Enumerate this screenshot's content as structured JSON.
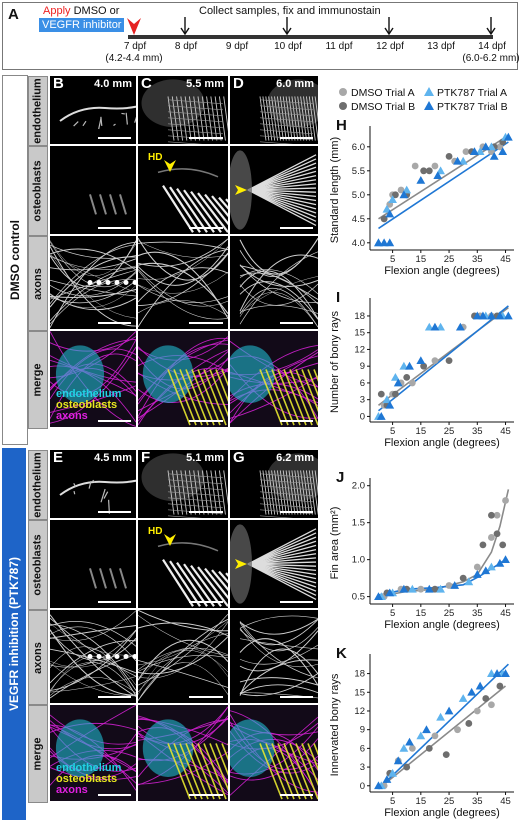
{
  "panel_a": {
    "label": "A",
    "apply_word": "Apply",
    "apply_rest": " DMSO or",
    "inhibitor": "VEGFR inhibitor",
    "collect": "Collect samples, fix and immunostain",
    "days": [
      {
        "label": "7 dpf",
        "sub": "(4.2-4.4 mm)",
        "marker": "red"
      },
      {
        "label": "8 dpf",
        "sub": "",
        "marker": "black"
      },
      {
        "label": "9 dpf",
        "sub": "",
        "marker": ""
      },
      {
        "label": "10 dpf",
        "sub": "",
        "marker": "black"
      },
      {
        "label": "11 dpf",
        "sub": "",
        "marker": ""
      },
      {
        "label": "12 dpf",
        "sub": "",
        "marker": "black"
      },
      {
        "label": "13 dpf",
        "sub": "",
        "marker": ""
      },
      {
        "label": "14 dpf",
        "sub": "(6.0-6.2 mm)",
        "marker": "black"
      }
    ]
  },
  "groups": {
    "control": "DMSO control",
    "inhibition": "VEGFR inhibition (PTK787)"
  },
  "rows": [
    "endothelium",
    "osteoblasts",
    "axons",
    "merge"
  ],
  "columns_top": [
    {
      "label": "B",
      "size": "4.0 mm"
    },
    {
      "label": "C",
      "size": "5.5 mm"
    },
    {
      "label": "D",
      "size": "6.0 mm"
    }
  ],
  "columns_bottom": [
    {
      "label": "E",
      "size": "4.5 mm"
    },
    {
      "label": "F",
      "size": "5.1 mm"
    },
    {
      "label": "G",
      "size": "6.2 mm"
    }
  ],
  "hd_label": "HD",
  "merge_legend": [
    {
      "text": "endothelium",
      "color": "#22d3e6"
    },
    {
      "text": "osteoblasts",
      "color": "#e8e820"
    },
    {
      "text": "axons",
      "color": "#e020e0"
    }
  ],
  "colors": {
    "dmso_a": "#a8a8a8",
    "dmso_b": "#6e6e6e",
    "ptk_a": "#5fb4ee",
    "ptk_b": "#1f77d4",
    "group_blue": "#1e64c8"
  },
  "legend": [
    {
      "name": "DMSO Trial A",
      "shape": "circle",
      "color": "#a8a8a8"
    },
    {
      "name": "DMSO Trial B",
      "shape": "circle",
      "color": "#6e6e6e"
    },
    {
      "name": "PTK787 Trial A",
      "shape": "triangle",
      "color": "#5fb4ee"
    },
    {
      "name": "PTK787 Trial B",
      "shape": "triangle",
      "color": "#1f77d4"
    }
  ],
  "chart_data": [
    {
      "panel": "H",
      "type": "scatter",
      "xlabel": "Flexion angle (degrees)",
      "ylabel": "Standard length (mm)",
      "xlim": [
        -3,
        48
      ],
      "ylim": [
        3.85,
        6.35
      ],
      "xticks": [
        5,
        15,
        25,
        35,
        45
      ],
      "yticks": [
        4.0,
        4.5,
        5.0,
        5.5,
        6.0
      ],
      "series": [
        {
          "name": "DMSO Trial A",
          "points": [
            [
              2,
              4.5
            ],
            [
              4,
              4.8
            ],
            [
              5,
              5.0
            ],
            [
              8,
              5.1
            ],
            [
              13,
              5.6
            ],
            [
              20,
              5.6
            ],
            [
              27,
              5.7
            ],
            [
              31,
              5.9
            ],
            [
              37,
              6.0
            ],
            [
              40,
              5.9
            ],
            [
              43,
              6.0
            ]
          ]
        },
        {
          "name": "DMSO Trial B",
          "points": [
            [
              2,
              4.5
            ],
            [
              6,
              5.0
            ],
            [
              10,
              5.0
            ],
            [
              16,
              5.5
            ],
            [
              18,
              5.5
            ],
            [
              25,
              5.8
            ],
            [
              33,
              5.9
            ],
            [
              41,
              6.0
            ],
            [
              44,
              6.1
            ]
          ]
        },
        {
          "name": "PTK787 Trial A",
          "points": [
            [
              0,
              4.0
            ],
            [
              3,
              4.7
            ],
            [
              5,
              4.9
            ],
            [
              10,
              5.1
            ],
            [
              22,
              5.5
            ],
            [
              30,
              5.7
            ],
            [
              36,
              5.9
            ],
            [
              40,
              6.0
            ],
            [
              45,
              6.2
            ]
          ]
        },
        {
          "name": "PTK787 Trial B",
          "points": [
            [
              0,
              4.0
            ],
            [
              2,
              4.0
            ],
            [
              4,
              4.0
            ],
            [
              4,
              4.6
            ],
            [
              9,
              5.0
            ],
            [
              15,
              5.3
            ],
            [
              21,
              5.4
            ],
            [
              28,
              5.7
            ],
            [
              34,
              5.9
            ],
            [
              38,
              6.0
            ],
            [
              41,
              5.8
            ],
            [
              44,
              5.9
            ],
            [
              46,
              6.2
            ]
          ]
        }
      ],
      "fits": [
        {
          "name": "DMSO",
          "color": "#8a8a8a",
          "x": [
            0,
            45
          ],
          "y": [
            4.5,
            6.2
          ]
        },
        {
          "name": "PTK787",
          "color": "#1f77d4",
          "x": [
            0,
            46
          ],
          "y": [
            4.3,
            6.1
          ]
        }
      ]
    },
    {
      "panel": "I",
      "type": "scatter",
      "xlabel": "Flexion angle (degrees)",
      "ylabel": "Number of bony rays",
      "xlim": [
        -3,
        48
      ],
      "ylim": [
        -1,
        20.5
      ],
      "xticks": [
        5,
        15,
        25,
        35,
        45
      ],
      "yticks": [
        0,
        3,
        6,
        9,
        12,
        15,
        18
      ],
      "series": [
        {
          "name": "DMSO Trial A",
          "points": [
            [
              2,
              2
            ],
            [
              5,
              4
            ],
            [
              8,
              6
            ],
            [
              12,
              6
            ],
            [
              20,
              10
            ],
            [
              30,
              16
            ],
            [
              36,
              18
            ],
            [
              40,
              18
            ]
          ]
        },
        {
          "name": "DMSO Trial B",
          "points": [
            [
              1,
              4
            ],
            [
              3,
              2
            ],
            [
              6,
              4
            ],
            [
              10,
              7
            ],
            [
              16,
              9
            ],
            [
              25,
              10
            ],
            [
              34,
              18
            ],
            [
              42,
              18
            ]
          ]
        },
        {
          "name": "PTK787 Trial A",
          "points": [
            [
              0,
              0
            ],
            [
              3,
              3
            ],
            [
              6,
              7
            ],
            [
              9,
              9
            ],
            [
              18,
              16
            ],
            [
              22,
              16
            ],
            [
              38,
              18
            ],
            [
              44,
              18
            ]
          ]
        },
        {
          "name": "PTK787 Trial B",
          "points": [
            [
              1,
              0
            ],
            [
              4,
              2
            ],
            [
              7,
              6
            ],
            [
              11,
              9
            ],
            [
              15,
              10
            ],
            [
              20,
              16
            ],
            [
              29,
              16
            ],
            [
              35,
              18
            ],
            [
              37,
              18
            ],
            [
              40,
              18
            ],
            [
              43,
              18
            ],
            [
              46,
              18
            ]
          ]
        }
      ],
      "fits": [
        {
          "name": "DMSO",
          "color": "#8a8a8a",
          "x": [
            0,
            46
          ],
          "y": [
            2,
            19.5
          ]
        },
        {
          "name": "PTK787",
          "color": "#1f77d4",
          "x": [
            0,
            46
          ],
          "y": [
            1,
            19.8
          ]
        }
      ]
    },
    {
      "panel": "J",
      "type": "scatter",
      "xlabel": "Flexion angle (degrees)",
      "ylabel": "Fin area (mm²)",
      "xlim": [
        -3,
        48
      ],
      "ylim": [
        0.4,
        2.05
      ],
      "xticks": [
        5,
        15,
        25,
        35,
        45
      ],
      "yticks": [
        0.5,
        1.0,
        1.5,
        2.0
      ],
      "series": [
        {
          "name": "DMSO Trial A",
          "points": [
            [
              2,
              0.5
            ],
            [
              8,
              0.6
            ],
            [
              15,
              0.6
            ],
            [
              25,
              0.65
            ],
            [
              35,
              0.9
            ],
            [
              40,
              1.3
            ],
            [
              42,
              1.6
            ],
            [
              45,
              1.8
            ]
          ]
        },
        {
          "name": "DMSO Trial B",
          "points": [
            [
              3,
              0.55
            ],
            [
              10,
              0.6
            ],
            [
              20,
              0.6
            ],
            [
              30,
              0.75
            ],
            [
              37,
              1.2
            ],
            [
              40,
              1.6
            ],
            [
              42,
              1.35
            ],
            [
              44,
              1.2
            ]
          ]
        },
        {
          "name": "PTK787 Trial A",
          "points": [
            [
              1,
              0.5
            ],
            [
              5,
              0.55
            ],
            [
              12,
              0.6
            ],
            [
              22,
              0.6
            ],
            [
              32,
              0.7
            ],
            [
              40,
              0.9
            ]
          ]
        },
        {
          "name": "PTK787 Trial B",
          "points": [
            [
              0,
              0.5
            ],
            [
              4,
              0.55
            ],
            [
              9,
              0.6
            ],
            [
              18,
              0.6
            ],
            [
              27,
              0.65
            ],
            [
              35,
              0.8
            ],
            [
              38,
              0.85
            ],
            [
              43,
              0.95
            ],
            [
              45,
              1.0
            ]
          ]
        }
      ],
      "fits": [
        {
          "name": "DMSO",
          "color": "#8a8a8a",
          "x": [
            0,
            10,
            20,
            30,
            35,
            40,
            43,
            46
          ],
          "y": [
            0.5,
            0.57,
            0.6,
            0.7,
            0.8,
            1.1,
            1.45,
            1.95
          ]
        },
        {
          "name": "PTK787",
          "color": "#1f77d4",
          "x": [
            0,
            10,
            20,
            30,
            36,
            41,
            45
          ],
          "y": [
            0.52,
            0.6,
            0.62,
            0.66,
            0.78,
            0.9,
            1.0
          ]
        }
      ]
    },
    {
      "panel": "K",
      "type": "scatter",
      "xlabel": "Flexion angle (degrees)",
      "ylabel": "Innervated bony rays",
      "xlim": [
        -3,
        48
      ],
      "ylim": [
        -1,
        20.5
      ],
      "xticks": [
        5,
        15,
        25,
        35,
        45
      ],
      "yticks": [
        0,
        3,
        6,
        9,
        12,
        15,
        18
      ],
      "series": [
        {
          "name": "DMSO Trial A",
          "points": [
            [
              2,
              0
            ],
            [
              7,
              4
            ],
            [
              12,
              6
            ],
            [
              20,
              8
            ],
            [
              28,
              9
            ],
            [
              35,
              12
            ],
            [
              40,
              13
            ]
          ]
        },
        {
          "name": "DMSO Trial B",
          "points": [
            [
              4,
              2
            ],
            [
              10,
              3
            ],
            [
              18,
              6
            ],
            [
              24,
              5
            ],
            [
              32,
              10
            ],
            [
              38,
              14
            ],
            [
              43,
              16
            ]
          ]
        },
        {
          "name": "PTK787 Trial A",
          "points": [
            [
              1,
              0
            ],
            [
              5,
              2
            ],
            [
              9,
              6
            ],
            [
              15,
              8
            ],
            [
              22,
              11
            ],
            [
              30,
              14
            ],
            [
              40,
              18
            ],
            [
              44,
              18
            ]
          ]
        },
        {
          "name": "PTK787 Trial B",
          "points": [
            [
              0,
              0
            ],
            [
              3,
              1
            ],
            [
              7,
              4
            ],
            [
              11,
              7
            ],
            [
              17,
              9
            ],
            [
              25,
              12
            ],
            [
              33,
              15
            ],
            [
              36,
              16
            ],
            [
              42,
              18
            ],
            [
              45,
              18
            ]
          ]
        }
      ],
      "fits": [
        {
          "name": "DMSO",
          "color": "#8a8a8a",
          "x": [
            0,
            45
          ],
          "y": [
            -0.5,
            16
          ]
        },
        {
          "name": "PTK787",
          "color": "#1f77d4",
          "x": [
            0,
            46
          ],
          "y": [
            -0.5,
            19.5
          ]
        }
      ]
    }
  ]
}
